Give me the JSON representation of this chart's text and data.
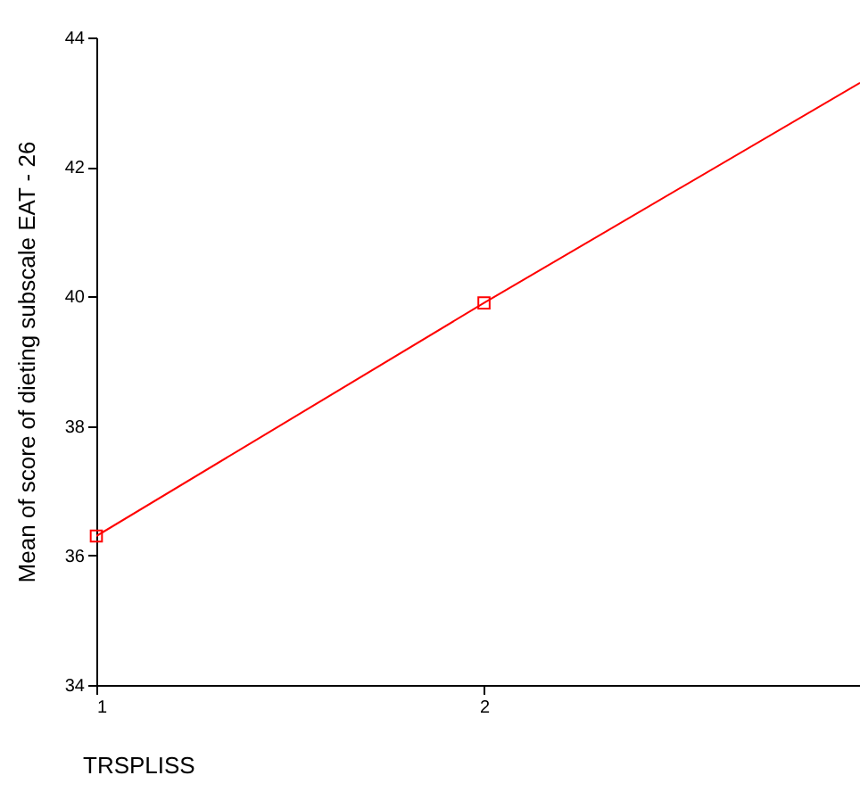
{
  "chart_data": {
    "type": "line",
    "xlabel": "TRSPLISS",
    "ylabel": "Mean of score of dieting subscale EAT - 26",
    "xlim": [
      1,
      2.97
    ],
    "xticks": [
      {
        "value": 1,
        "label": "1"
      },
      {
        "value": 2,
        "label": "2"
      }
    ],
    "ylim": [
      34,
      44
    ],
    "yticks": [
      34,
      36,
      38,
      40,
      42,
      44
    ],
    "grid": false,
    "legend": false,
    "series": [
      {
        "type": "line",
        "color": "#ff0000",
        "x": [
          1,
          2,
          2.97
        ],
        "values": [
          36.3,
          39.9,
          43.3
        ],
        "marker": "none",
        "line_style": "solid"
      },
      {
        "type": "scatter",
        "color": "#ff0000",
        "x": [
          1,
          2
        ],
        "values": [
          36.3,
          39.9
        ],
        "marker": "square"
      }
    ]
  }
}
